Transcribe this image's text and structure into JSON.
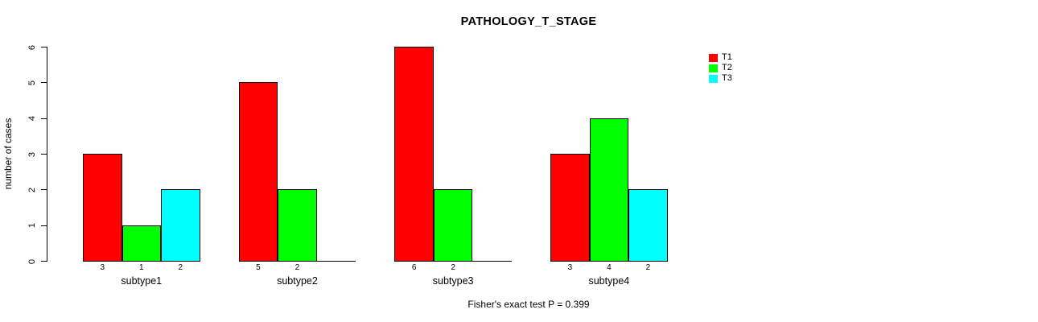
{
  "title": "PATHOLOGY_T_STAGE",
  "ylabel": "number of cases",
  "annotation": "Fisher's exact test P = 0.399",
  "chart_data": {
    "type": "bar",
    "title": "PATHOLOGY_T_STAGE",
    "xlabel": "",
    "ylabel": "number of cases",
    "categories": [
      "subtype1",
      "subtype2",
      "subtype3",
      "subtype4"
    ],
    "series": [
      {
        "name": "T1",
        "color": "#FF0000",
        "values": [
          3,
          5,
          6,
          3
        ]
      },
      {
        "name": "T2",
        "color": "#00FF00",
        "values": [
          1,
          2,
          2,
          4
        ]
      },
      {
        "name": "T3",
        "color": "#00FFFF",
        "values": [
          2,
          0,
          0,
          2
        ]
      }
    ],
    "bar_value_labels": [
      [
        "3",
        "1",
        "2"
      ],
      [
        "5",
        "2",
        ""
      ],
      [
        "6",
        "2",
        ""
      ],
      [
        "3",
        "4",
        "2"
      ]
    ],
    "yticks": [
      0,
      1,
      2,
      3,
      4,
      5,
      6
    ],
    "ylim": [
      0,
      6
    ],
    "grid": false,
    "legend_position": "right",
    "legend_entries": [
      "T1",
      "T2",
      "T3"
    ],
    "annotation": "Fisher's exact test P = 0.399"
  }
}
